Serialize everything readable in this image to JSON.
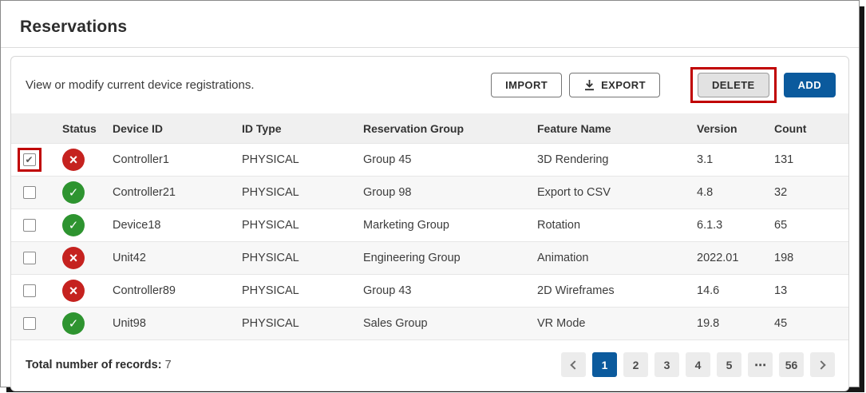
{
  "page": {
    "title": "Reservations"
  },
  "toolbar": {
    "description": "View or modify current device registrations.",
    "buttons": {
      "import": "IMPORT",
      "export": "EXPORT",
      "delete": "DELETE",
      "add": "ADD"
    }
  },
  "icons": {
    "checkbox_check": "✔",
    "status_ok_check": "✓",
    "status_error_cross": "×",
    "pagination_ellipsis": "⋯"
  },
  "table": {
    "columns": [
      "Status",
      "Device ID",
      "ID Type",
      "Reservation Group",
      "Feature Name",
      "Version",
      "Count"
    ],
    "rows": [
      {
        "selected": true,
        "annotated": true,
        "status": "error",
        "device_id": "Controller1",
        "id_type": "PHYSICAL",
        "reservation_group": "Group 45",
        "feature_name": "3D Rendering",
        "version": "3.1",
        "count": "131"
      },
      {
        "selected": false,
        "annotated": false,
        "status": "ok",
        "device_id": "Controller21",
        "id_type": "PHYSICAL",
        "reservation_group": "Group 98",
        "feature_name": "Export to CSV",
        "version": "4.8",
        "count": "32"
      },
      {
        "selected": false,
        "annotated": false,
        "status": "ok",
        "device_id": "Device18",
        "id_type": "PHYSICAL",
        "reservation_group": "Marketing Group",
        "feature_name": "Rotation",
        "version": "6.1.3",
        "count": "65"
      },
      {
        "selected": false,
        "annotated": false,
        "status": "error",
        "device_id": "Unit42",
        "id_type": "PHYSICAL",
        "reservation_group": "Engineering Group",
        "feature_name": "Animation",
        "version": "2022.01",
        "count": "198"
      },
      {
        "selected": false,
        "annotated": false,
        "status": "error",
        "device_id": "Controller89",
        "id_type": "PHYSICAL",
        "reservation_group": "Group 43",
        "feature_name": "2D Wireframes",
        "version": "14.6",
        "count": "13"
      },
      {
        "selected": false,
        "annotated": false,
        "status": "ok",
        "device_id": "Unit98",
        "id_type": "PHYSICAL",
        "reservation_group": "Sales Group",
        "feature_name": "VR Mode",
        "version": "19.8",
        "count": "45"
      }
    ]
  },
  "footer": {
    "total_label": "Total number of records:",
    "total_value": "7",
    "pagination": {
      "pages": [
        "1",
        "2",
        "3",
        "4",
        "5",
        "⋯",
        "56"
      ],
      "active": "1"
    }
  },
  "colors": {
    "accent_blue": "#0b5a9d",
    "status_error_red": "#c5221f",
    "status_ok_green": "#2e9430",
    "annotation_red": "#c00000"
  },
  "annotations": [
    "delete-button-highlight",
    "row-0-checkbox-highlight"
  ]
}
